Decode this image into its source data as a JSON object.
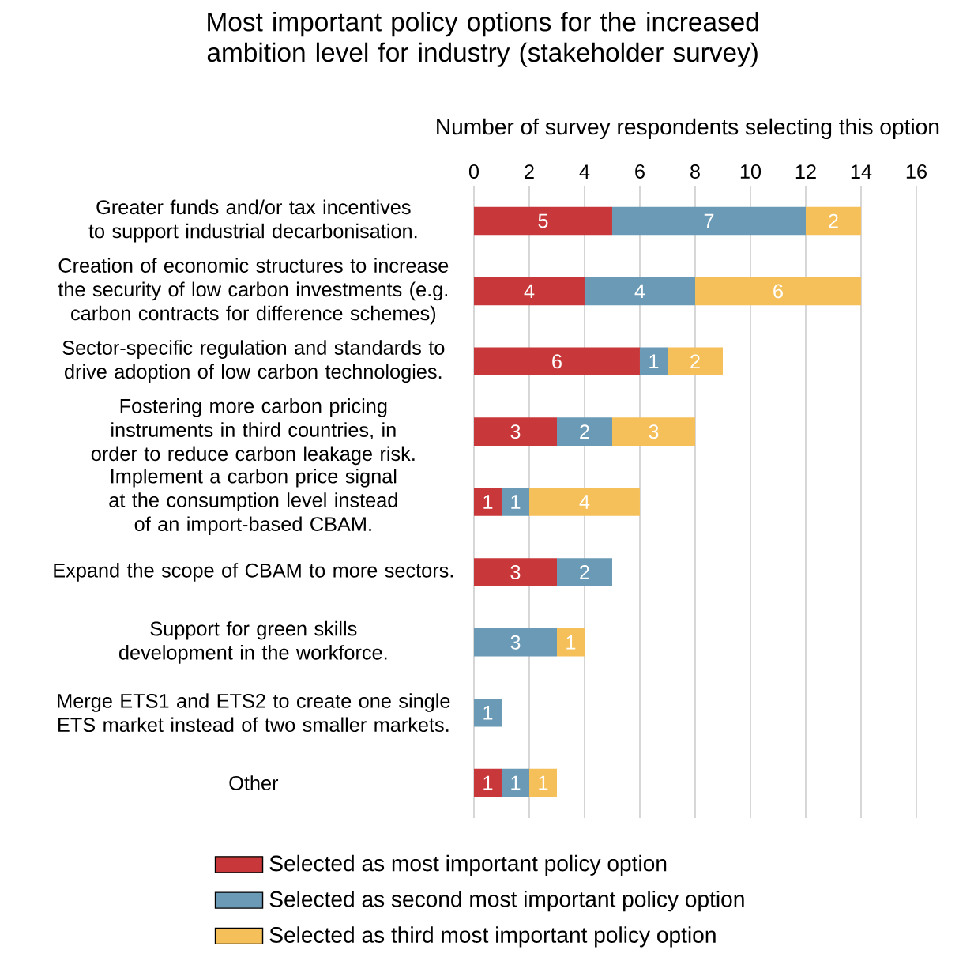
{
  "chart_data": {
    "type": "bar",
    "orientation": "horizontal",
    "stacked": true,
    "title": "Most important policy options for the increased ambition level for industry (stakeholder survey)",
    "xlabel": "Number of survey respondents selecting this option",
    "categories": [
      "Greater funds and/or tax incentives to support industrial decarbonisation.",
      "Creation of economic structures to increase the security of low carbon investments (e.g. carbon contracts for difference schemes)",
      "Sector-specific regulation and standards to drive adoption of low carbon technologies.",
      "Fostering more carbon pricing instruments in third countries, in order to reduce carbon leakage risk.",
      "Implement a carbon price signal at the consumption level instead of an import-based CBAM.",
      "Expand the scope of CBAM to more sectors.",
      "Support for green skills development in the workforce.",
      "Merge ETS1 and ETS2 to create one single ETS market instead of two smaller markets.",
      "Other"
    ],
    "series": [
      {
        "name": "Selected as most important policy option",
        "color": "#c8383a",
        "values": [
          5,
          4,
          6,
          3,
          1,
          3,
          null,
          null,
          1
        ]
      },
      {
        "name": "Selected as second most important policy option",
        "color": "#6a9ab5",
        "values": [
          7,
          4,
          1,
          2,
          1,
          2,
          3,
          1,
          1
        ]
      },
      {
        "name": "Selected as third most important policy option",
        "color": "#f5c05a",
        "values": [
          2,
          6,
          2,
          3,
          4,
          null,
          1,
          null,
          1
        ]
      }
    ],
    "xlim": [
      0,
      16
    ],
    "xticks": [
      0,
      2,
      4,
      6,
      8,
      10,
      12,
      14,
      16
    ],
    "grid": "x",
    "legend": "bottom",
    "data_labels": true
  }
}
